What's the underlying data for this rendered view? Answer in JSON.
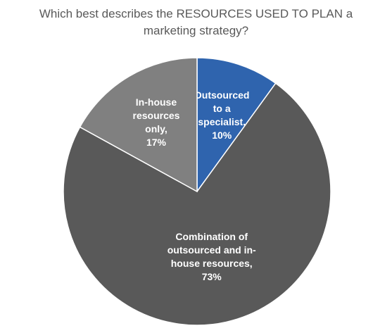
{
  "chart_data": {
    "type": "pie",
    "title": "Which best describes the RESOURCES USED TO PLAN a marketing strategy?",
    "categories": [
      "Outsourced to a specialist,",
      "Combination of outsourced and in-house resources,",
      "In-house resources only,"
    ],
    "values": [
      10,
      73,
      17
    ],
    "value_labels": [
      "10%",
      "73%",
      "17%"
    ],
    "colors": [
      "#2f64ae",
      "#595959",
      "#808080"
    ]
  }
}
